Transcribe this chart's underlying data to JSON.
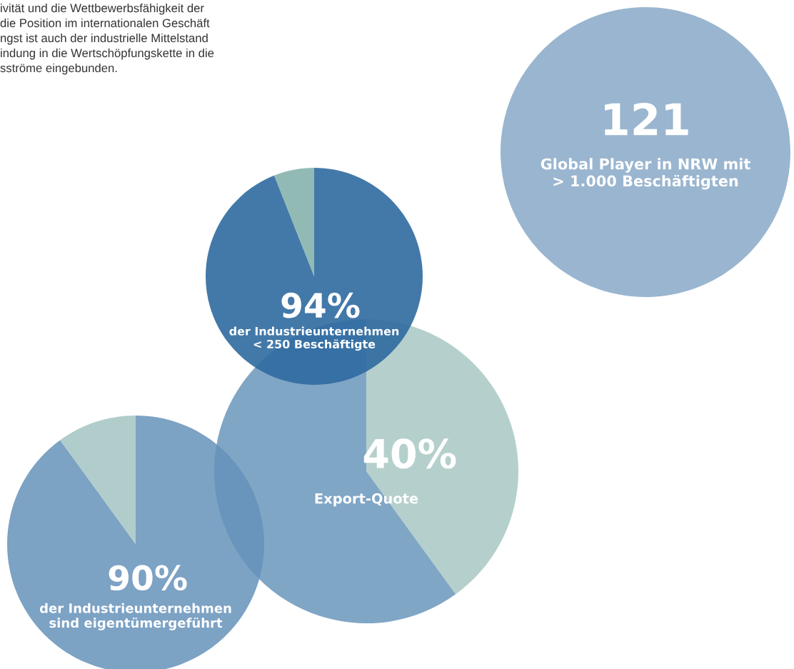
{
  "chart_data": [
    {
      "type": "other",
      "title": "121",
      "subtitle": "Global Player in NRW mit\n> 1.000 Beschäftigten",
      "color": "#9ab5cf",
      "annotations": [
        "ivität und die Wettbewerbsfähigkeit der",
        "die Position im internationalen Geschäft",
        "ngst ist auch der industrielle Mittelstand",
        "indung in die Wertschöpfungskette in die",
        "sströme eingebunden."
      ]
    },
    {
      "type": "pie",
      "categories": [
        null,
        null
      ],
      "values": [
        94,
        6
      ],
      "colors": [
        "#2f6aa0",
        "#86b3ad"
      ],
      "value_labels": [
        "94%",
        null
      ],
      "subtitle": "der Industrieunternehmen\n< 250 Beschäftigte"
    },
    {
      "type": "pie",
      "categories": [
        null,
        null
      ],
      "values": [
        40,
        60
      ],
      "colors": [
        "#b5d0cc",
        "#80a6c6"
      ],
      "value_labels": [
        "40%",
        null
      ],
      "subtitle": "Export-Quote"
    },
    {
      "type": "pie",
      "categories": [
        null,
        null
      ],
      "values": [
        90,
        10
      ],
      "colors": [
        "#6592ba",
        "#a2c4c2"
      ],
      "value_labels": [
        "90%",
        null
      ],
      "subtitle": "der Industrieunternehmen\nsind eigentümergeführt"
    }
  ]
}
